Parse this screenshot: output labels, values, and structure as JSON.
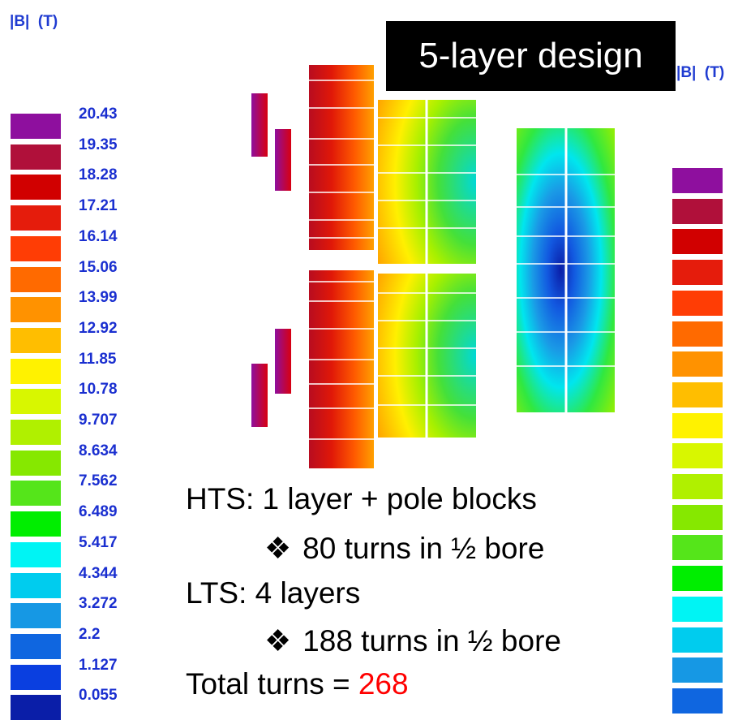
{
  "unit_label_left": "|B|  (T)",
  "unit_label_right": "|B|  (T)",
  "design_title": "5-layer design",
  "legend": {
    "values": [
      "20.43",
      "19.35",
      "18.28",
      "17.21",
      "16.14",
      "15.06",
      "13.99",
      "12.92",
      "11.85",
      "10.78",
      "9.707",
      "8.634",
      "7.562",
      "6.489",
      "5.417",
      "4.344",
      "3.272",
      "2.2",
      "1.127",
      "0.055"
    ],
    "colors": [
      "#8e0f9e",
      "#b0103a",
      "#d10000",
      "#e51c0c",
      "#ff3d05",
      "#ff6a00",
      "#ff9200",
      "#ffbe00",
      "#fff200",
      "#d8f700",
      "#b0f000",
      "#86e800",
      "#55e51a",
      "#00ee00",
      "#00f4f4",
      "#00ccee",
      "#1698e4",
      "#0f66e0",
      "#0a3fe0",
      "#0a1ea8"
    ]
  },
  "notes": {
    "hts": "HTS: 1 layer + pole blocks",
    "hts_turns": "80 turns in ½ bore",
    "lts": "LTS: 4 layers",
    "lts_turns": "188 turns in ½ bore",
    "total_label": "Total turns = ",
    "total_value": "268",
    "bullet_icon": "❖"
  }
}
